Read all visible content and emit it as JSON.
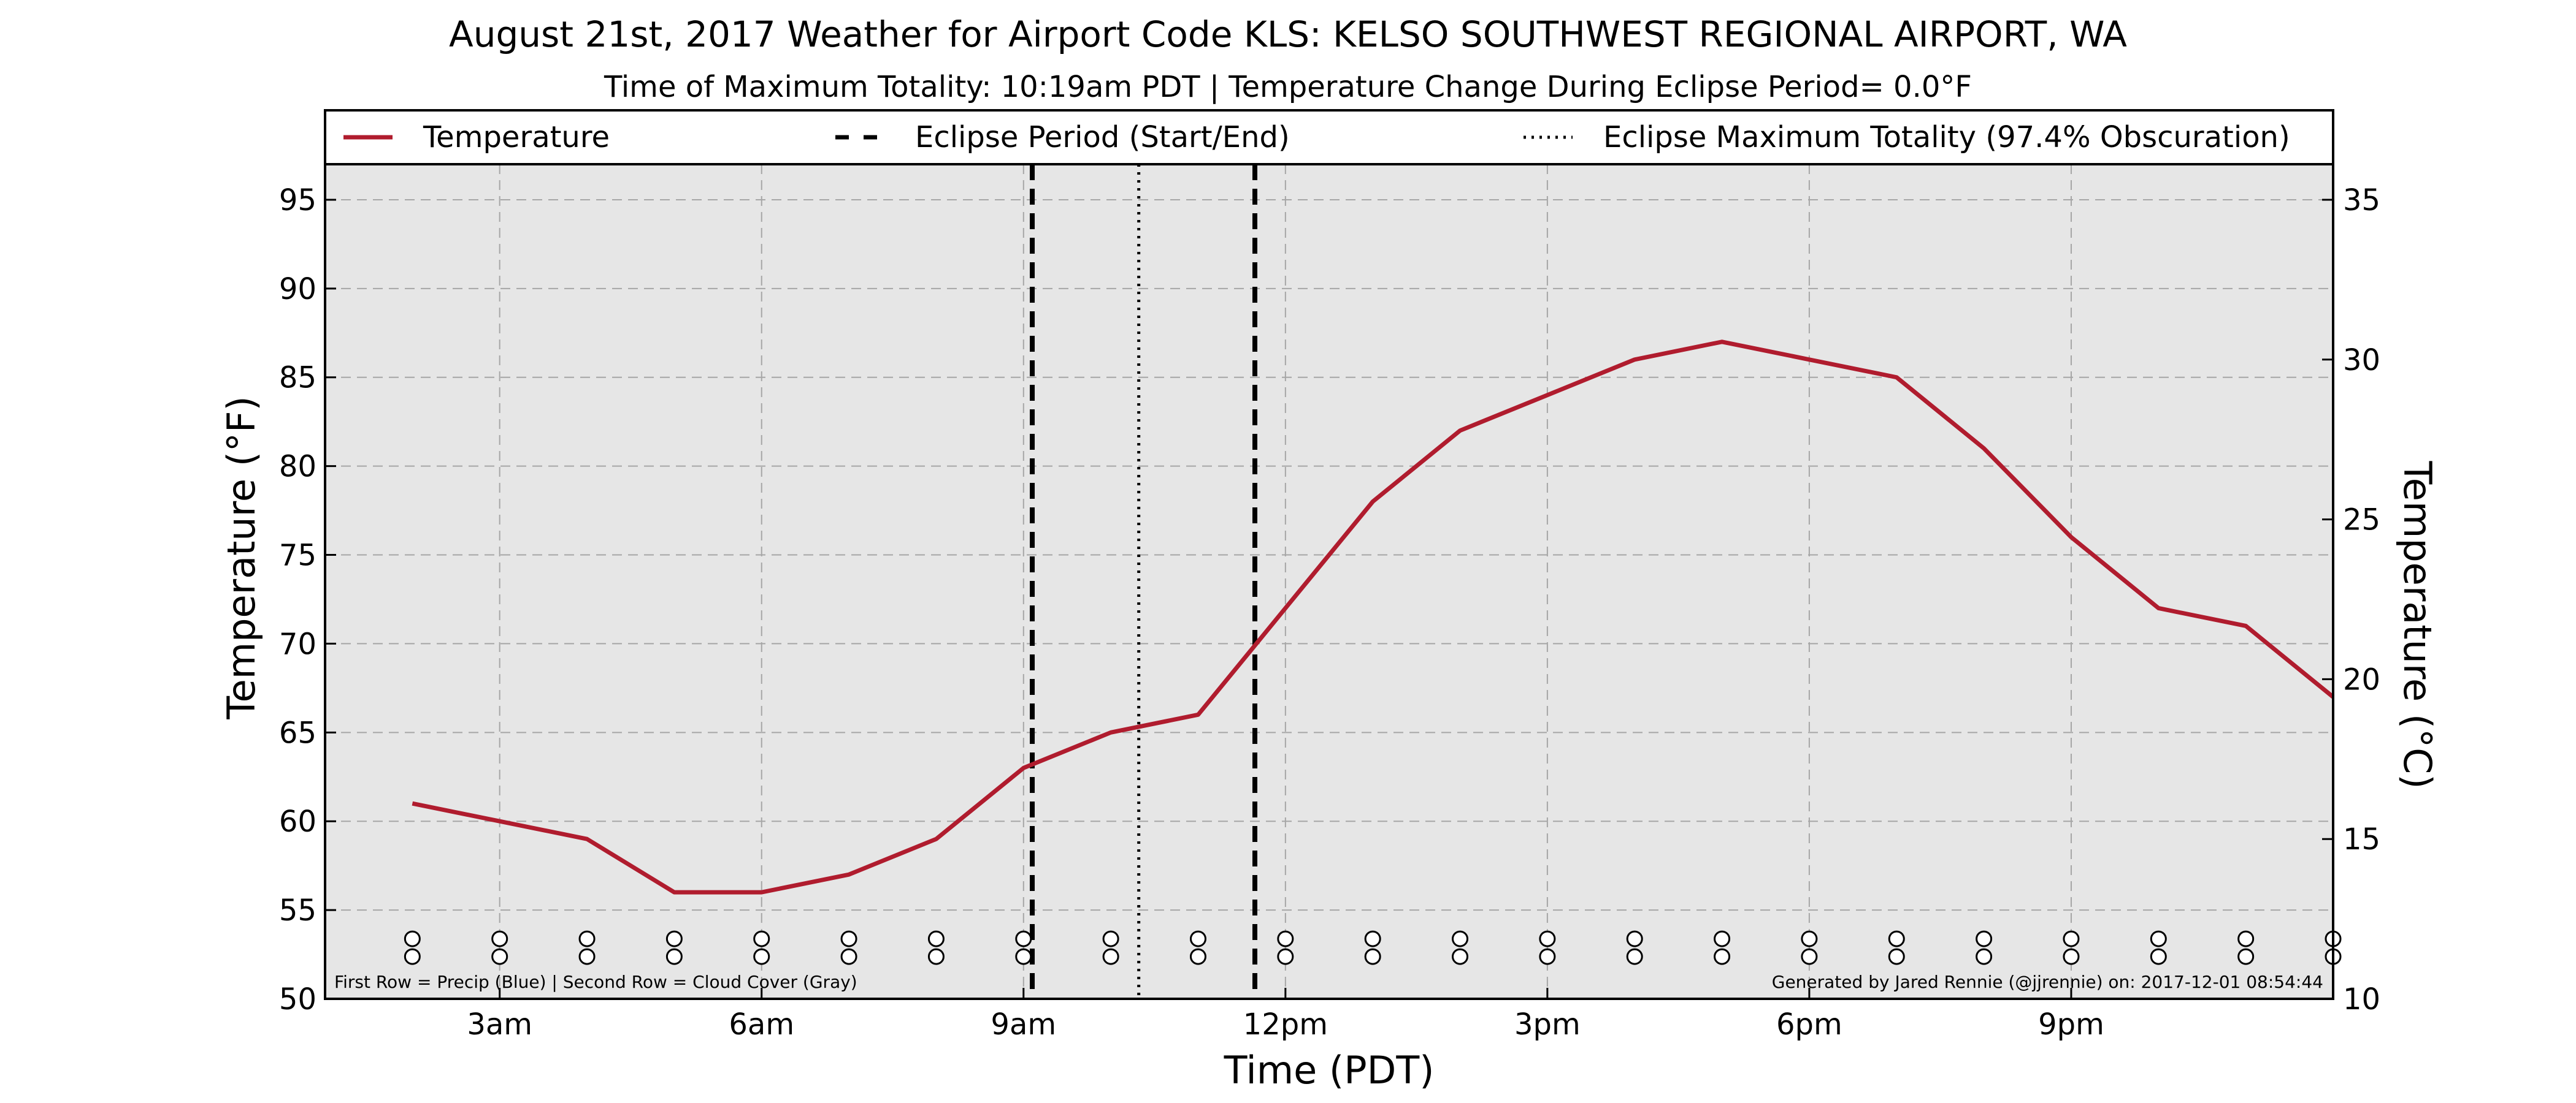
{
  "chart_data": {
    "type": "line",
    "title": "August 21st, 2017 Weather for Airport Code KLS: KELSO SOUTHWEST REGIONAL AIRPORT, WA",
    "subtitle": "Time of Maximum Totality: 10:19am PDT | Temperature Change During Eclipse Period= 0.0°F",
    "xlabel": "Time (PDT)",
    "ylabel": "Temperature (°F)",
    "y2label": "Temperature (°C)",
    "x_ticks": [
      3,
      6,
      9,
      12,
      15,
      18,
      21
    ],
    "x_tick_labels": [
      "3am",
      "6am",
      "9am",
      "12pm",
      "3pm",
      "6pm",
      "9pm"
    ],
    "xlim": [
      1,
      24
    ],
    "ylim": [
      50,
      97
    ],
    "y_ticks": [
      50,
      55,
      60,
      65,
      70,
      75,
      80,
      85,
      90,
      95
    ],
    "y2_ticks": [
      10,
      15,
      20,
      25,
      30,
      35
    ],
    "grid": true,
    "legend_position": "top",
    "series": [
      {
        "name": "Temperature",
        "color": "#b01c2e",
        "x": [
          2,
          3,
          4,
          5,
          6,
          7,
          8,
          9,
          10,
          11,
          12,
          13,
          14,
          15,
          16,
          17,
          18,
          19,
          20,
          21,
          22,
          23,
          24
        ],
        "values": [
          61,
          60,
          59,
          56,
          56,
          57,
          59,
          63,
          65,
          66,
          72,
          78,
          82,
          84,
          86,
          87,
          86,
          85,
          81,
          76,
          72,
          71,
          67
        ]
      }
    ],
    "eclipse_start": 9.1,
    "eclipse_end": 11.65,
    "eclipse_max": 10.32,
    "legend": [
      {
        "label": "Temperature",
        "style": "solid",
        "color": "#b01c2e"
      },
      {
        "label": "Eclipse Period (Start/End)",
        "style": "dashed",
        "color": "#000000"
      },
      {
        "label": "Eclipse Maximum Totality (97.4% Obscuration)",
        "style": "dotted",
        "color": "#000000"
      }
    ],
    "marker_rows": {
      "x": [
        2,
        3,
        4,
        5,
        6,
        7,
        8,
        9,
        10,
        11,
        12,
        13,
        14,
        15,
        16,
        17,
        18,
        19,
        20,
        21,
        22,
        23,
        24
      ],
      "row1_y": 54,
      "row2_y": 53
    },
    "footnote_left": "First Row = Precip (Blue) | Second Row = Cloud Cover (Gray)",
    "footnote_right": "Generated by Jared Rennie (@jjrennie) on: 2017-12-01 08:54:44"
  }
}
